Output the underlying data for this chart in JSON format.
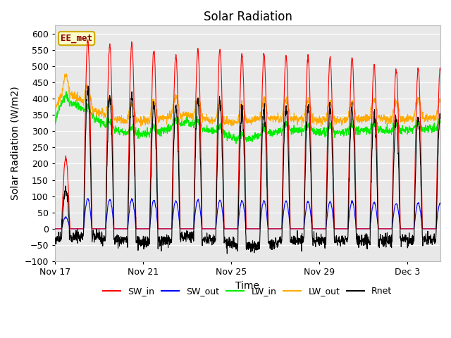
{
  "title": "Solar Radiation",
  "xlabel": "Time",
  "ylabel": "Solar Radiation (W/m2)",
  "ylim": [
    -100,
    625
  ],
  "yticks": [
    -100,
    -50,
    0,
    50,
    100,
    150,
    200,
    250,
    300,
    350,
    400,
    450,
    500,
    550,
    600
  ],
  "colors": {
    "SW_in": "#ff0000",
    "SW_out": "#0000ff",
    "LW_in": "#00ee00",
    "LW_out": "#ffaa00",
    "Rnet": "#000000"
  },
  "fig_bg": "#ffffff",
  "plot_bg": "#e8e8e8",
  "grid_color": "#ffffff",
  "annotation_label": "EE_met",
  "annotation_color": "#8b0000",
  "annotation_bg": "#ffffcc",
  "annotation_border": "#ccaa00",
  "tick_positions": [
    0,
    4,
    8,
    12,
    16
  ],
  "tick_labels": [
    "Nov 17",
    "Nov 21",
    "Nov 25",
    "Nov 29",
    "Dec 3"
  ],
  "xlim": [
    0,
    17.5
  ],
  "title_fontsize": 12,
  "axis_fontsize": 10,
  "legend_fontsize": 9
}
